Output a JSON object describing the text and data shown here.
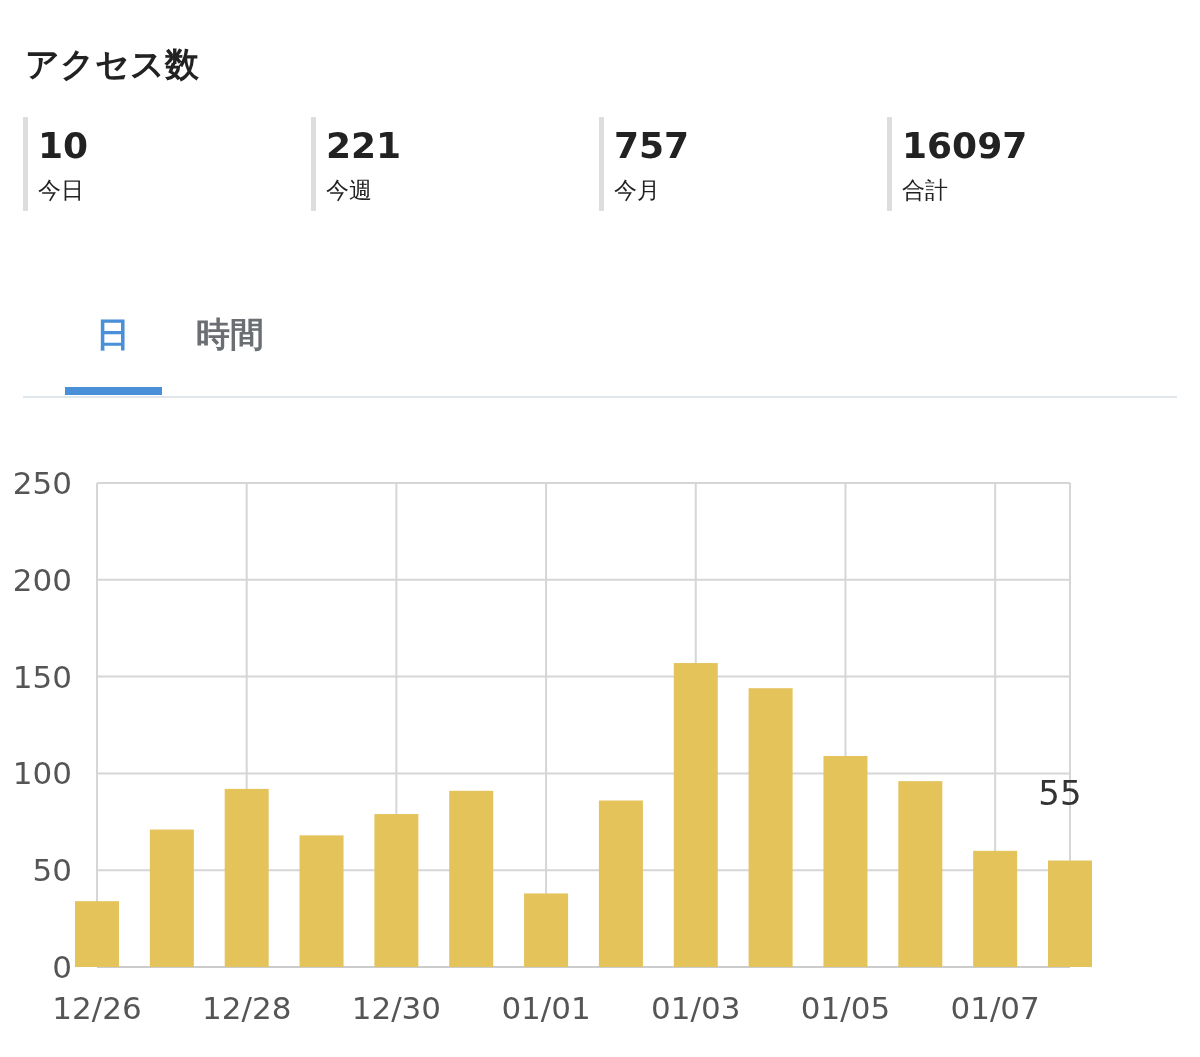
{
  "chart_data": [
    {
      "type": "other",
      "title": "アクセス数",
      "annotations": [
        "10",
        "今日",
        "221",
        "今週",
        "757",
        "今月",
        "16097",
        "合計",
        "日",
        "時間"
      ]
    },
    {
      "type": "bar",
      "categories": [
        "12/26",
        null,
        "12/28",
        null,
        "12/30",
        null,
        "01/01",
        null,
        "01/03",
        null,
        "01/05",
        null,
        "01/07",
        null
      ],
      "values": [
        34,
        71,
        92,
        68,
        79,
        91,
        38,
        86,
        157,
        144,
        109,
        96,
        60,
        55
      ],
      "value_labels": [
        null,
        null,
        null,
        null,
        null,
        null,
        null,
        null,
        null,
        null,
        null,
        null,
        null,
        "55"
      ],
      "color": "#e4c35b",
      "ylim": [
        0,
        250
      ],
      "yticks": [
        0,
        50,
        100,
        150,
        200,
        250
      ],
      "grid": true
    }
  ]
}
